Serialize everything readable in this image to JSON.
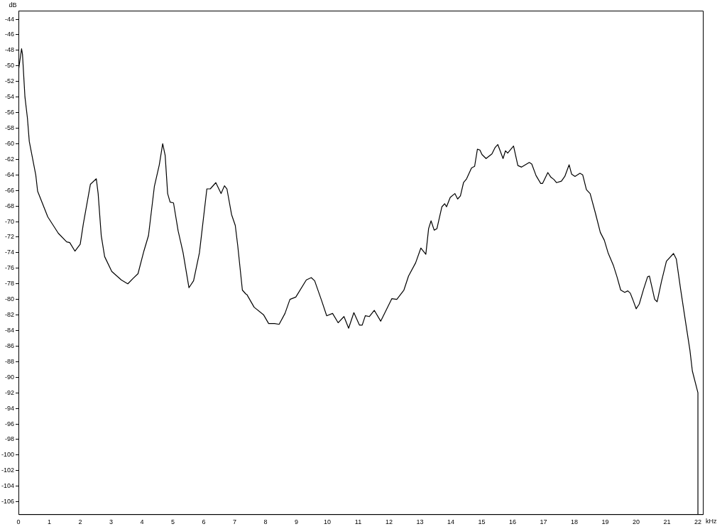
{
  "chart_data": {
    "type": "line",
    "xlabel": "kHz",
    "ylabel": "dB",
    "xlim": [
      0,
      22.16
    ],
    "ylim": [
      -107.6,
      -42.9
    ],
    "xticks": [
      0,
      1,
      2,
      3,
      4,
      5,
      6,
      7,
      8,
      9,
      10,
      11,
      12,
      13,
      14,
      15,
      16,
      17,
      18,
      19,
      20,
      21,
      22
    ],
    "yticks": [
      -106,
      -104,
      -102,
      -100,
      -98,
      -96,
      -94,
      -92,
      -90,
      -88,
      -86,
      -84,
      -82,
      -80,
      -78,
      -76,
      -74,
      -72,
      -70,
      -68,
      -66,
      -64,
      -62,
      -60,
      -58,
      -56,
      -54,
      -52,
      -50,
      -48,
      -46,
      -44
    ],
    "marker": "none",
    "line_style": "solid",
    "series": [
      {
        "color": "#000000",
        "x": [
          0,
          0.1,
          0.13,
          0.21,
          0.29,
          0.35,
          0.56,
          0.62,
          0.95,
          1.29,
          1.56,
          1.66,
          1.83,
          2.0,
          2.1,
          2.33,
          2.52,
          2.58,
          2.68,
          2.79,
          3.02,
          3.33,
          3.54,
          3.71,
          3.87,
          4.06,
          4.21,
          4.4,
          4.56,
          4.67,
          4.75,
          4.83,
          4.91,
          5.02,
          5.17,
          5.33,
          5.52,
          5.67,
          5.86,
          6.1,
          6.21,
          6.39,
          6.56,
          6.67,
          6.75,
          6.9,
          7.02,
          7.1,
          7.25,
          7.36,
          7.4,
          7.63,
          7.94,
          8.1,
          8.29,
          8.44,
          8.63,
          8.79,
          8.98,
          9.32,
          9.48,
          9.59,
          9.82,
          9.98,
          10.17,
          10.35,
          10.54,
          10.69,
          10.86,
          11.04,
          11.13,
          11.23,
          11.36,
          11.52,
          11.73,
          11.94,
          12.09,
          12.25,
          12.48,
          12.63,
          12.86,
          13.03,
          13.19,
          13.28,
          13.36,
          13.46,
          13.55,
          13.71,
          13.8,
          13.86,
          13.98,
          14.13,
          14.22,
          14.31,
          14.41,
          14.51,
          14.67,
          14.77,
          14.86,
          14.94,
          15.01,
          15.14,
          15.33,
          15.43,
          15.52,
          15.69,
          15.77,
          15.84,
          16.03,
          16.17,
          16.29,
          16.54,
          16.62,
          16.76,
          16.91,
          16.97,
          17.14,
          17.24,
          17.34,
          17.42,
          17.58,
          17.69,
          17.83,
          17.91,
          18.02,
          18.18,
          18.27,
          18.39,
          18.51,
          18.68,
          18.84,
          18.97,
          19.09,
          19.26,
          19.38,
          19.5,
          19.63,
          19.73,
          19.81,
          19.89,
          20.0,
          20.1,
          20.24,
          20.37,
          20.43,
          20.51,
          20.6,
          20.68,
          20.82,
          20.98,
          21.21,
          21.3,
          21.44,
          21.6,
          21.74,
          21.82,
          22.0,
          22.0,
          22.0
        ],
        "values": [
          -50.6,
          -47.8,
          -48.5,
          -54.0,
          -56.7,
          -59.7,
          -64.0,
          -66.1,
          -69.4,
          -71.5,
          -72.6,
          -72.7,
          -73.8,
          -72.9,
          -70.3,
          -65.2,
          -64.5,
          -66.4,
          -71.8,
          -74.5,
          -76.4,
          -77.5,
          -78.0,
          -77.3,
          -76.7,
          -73.8,
          -71.8,
          -65.5,
          -62.7,
          -60.0,
          -61.5,
          -66.4,
          -67.5,
          -67.6,
          -71.2,
          -74.0,
          -78.5,
          -77.6,
          -74.0,
          -65.8,
          -65.8,
          -65.0,
          -66.4,
          -65.4,
          -65.8,
          -69.1,
          -70.5,
          -73.1,
          -78.8,
          -79.3,
          -79.4,
          -81.0,
          -82.0,
          -83.1,
          -83.1,
          -83.2,
          -81.8,
          -80.0,
          -79.7,
          -77.5,
          -77.2,
          -77.6,
          -80.2,
          -82.1,
          -81.8,
          -83.0,
          -82.2,
          -83.7,
          -81.7,
          -83.3,
          -83.3,
          -82.1,
          -82.2,
          -81.4,
          -82.8,
          -81.1,
          -79.9,
          -80.0,
          -78.8,
          -77.0,
          -75.3,
          -73.4,
          -74.2,
          -70.9,
          -69.9,
          -71.1,
          -70.9,
          -68.1,
          -67.7,
          -68.1,
          -66.9,
          -66.4,
          -67.1,
          -66.7,
          -65.0,
          -64.5,
          -63.1,
          -62.9,
          -60.7,
          -60.8,
          -61.4,
          -61.9,
          -61.3,
          -60.5,
          -60.1,
          -61.9,
          -60.9,
          -61.2,
          -60.3,
          -62.8,
          -63.0,
          -62.4,
          -62.6,
          -64.1,
          -65.1,
          -65.1,
          -63.7,
          -64.3,
          -64.6,
          -65.0,
          -64.8,
          -64.2,
          -62.7,
          -63.9,
          -64.2,
          -63.8,
          -64.0,
          -65.9,
          -66.4,
          -68.9,
          -71.4,
          -72.4,
          -74.0,
          -75.6,
          -77.1,
          -78.8,
          -79.1,
          -78.9,
          -79.2,
          -80.0,
          -81.2,
          -80.6,
          -78.7,
          -77.1,
          -77.0,
          -78.4,
          -80.0,
          -80.3,
          -77.7,
          -75.1,
          -74.1,
          -74.8,
          -78.7,
          -82.9,
          -86.5,
          -89.2,
          -92.0,
          -101.1,
          -107.6
        ]
      }
    ]
  }
}
